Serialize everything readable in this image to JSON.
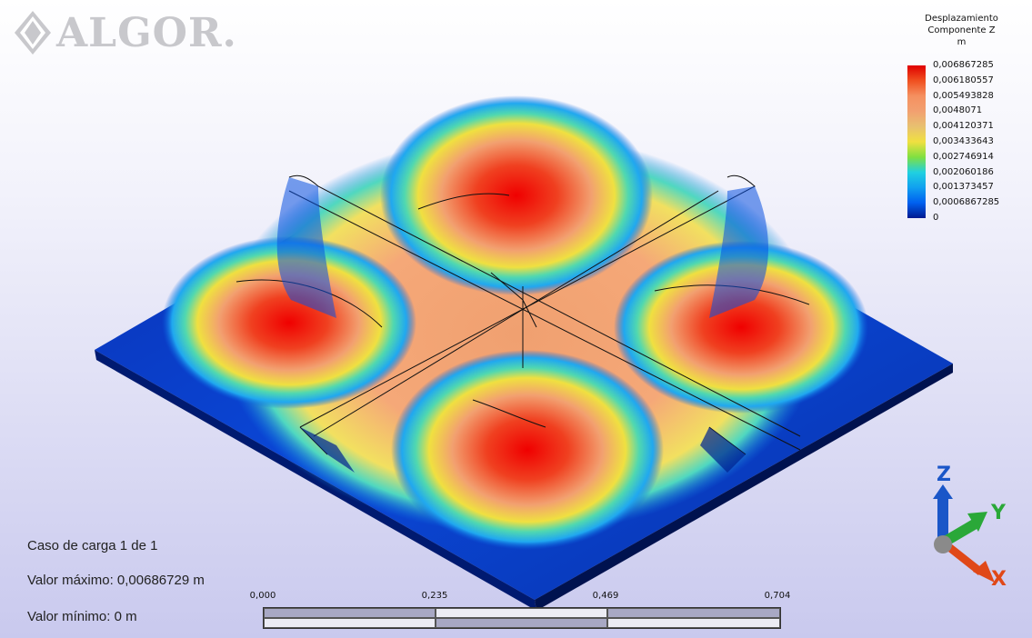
{
  "logo": {
    "text": "ALGOR."
  },
  "legend": {
    "title_lines": [
      "Desplazamiento",
      "Componente Z",
      "m"
    ],
    "values": [
      "0,006867285",
      "0,006180557",
      "0,005493828",
      "0,0048071",
      "0,004120371",
      "0,003433643",
      "0,002746914",
      "0,002060186",
      "0,001373457",
      "0,0006867285",
      "0"
    ],
    "colors": [
      "#e00000",
      "#f05020",
      "#f59060",
      "#f2a070",
      "#e8c070",
      "#f0e040",
      "#80e040",
      "#20d0e0",
      "#10a0f0",
      "#0060f0",
      "#001a90"
    ]
  },
  "info": {
    "load_case": "Caso de carga  1 de 1",
    "max_value": "Valor máximo: 0,00686729 m",
    "min_value": "Valor mínimo: 0 m"
  },
  "scale": {
    "labels": [
      "0,000",
      "0,235",
      "0,469",
      "0,704"
    ]
  },
  "triad": {
    "z_label": "Z",
    "y_label": "Y",
    "x_label": "X",
    "z_color": "#1a56c8",
    "y_color": "#2aa838",
    "x_color": "#e04818"
  }
}
